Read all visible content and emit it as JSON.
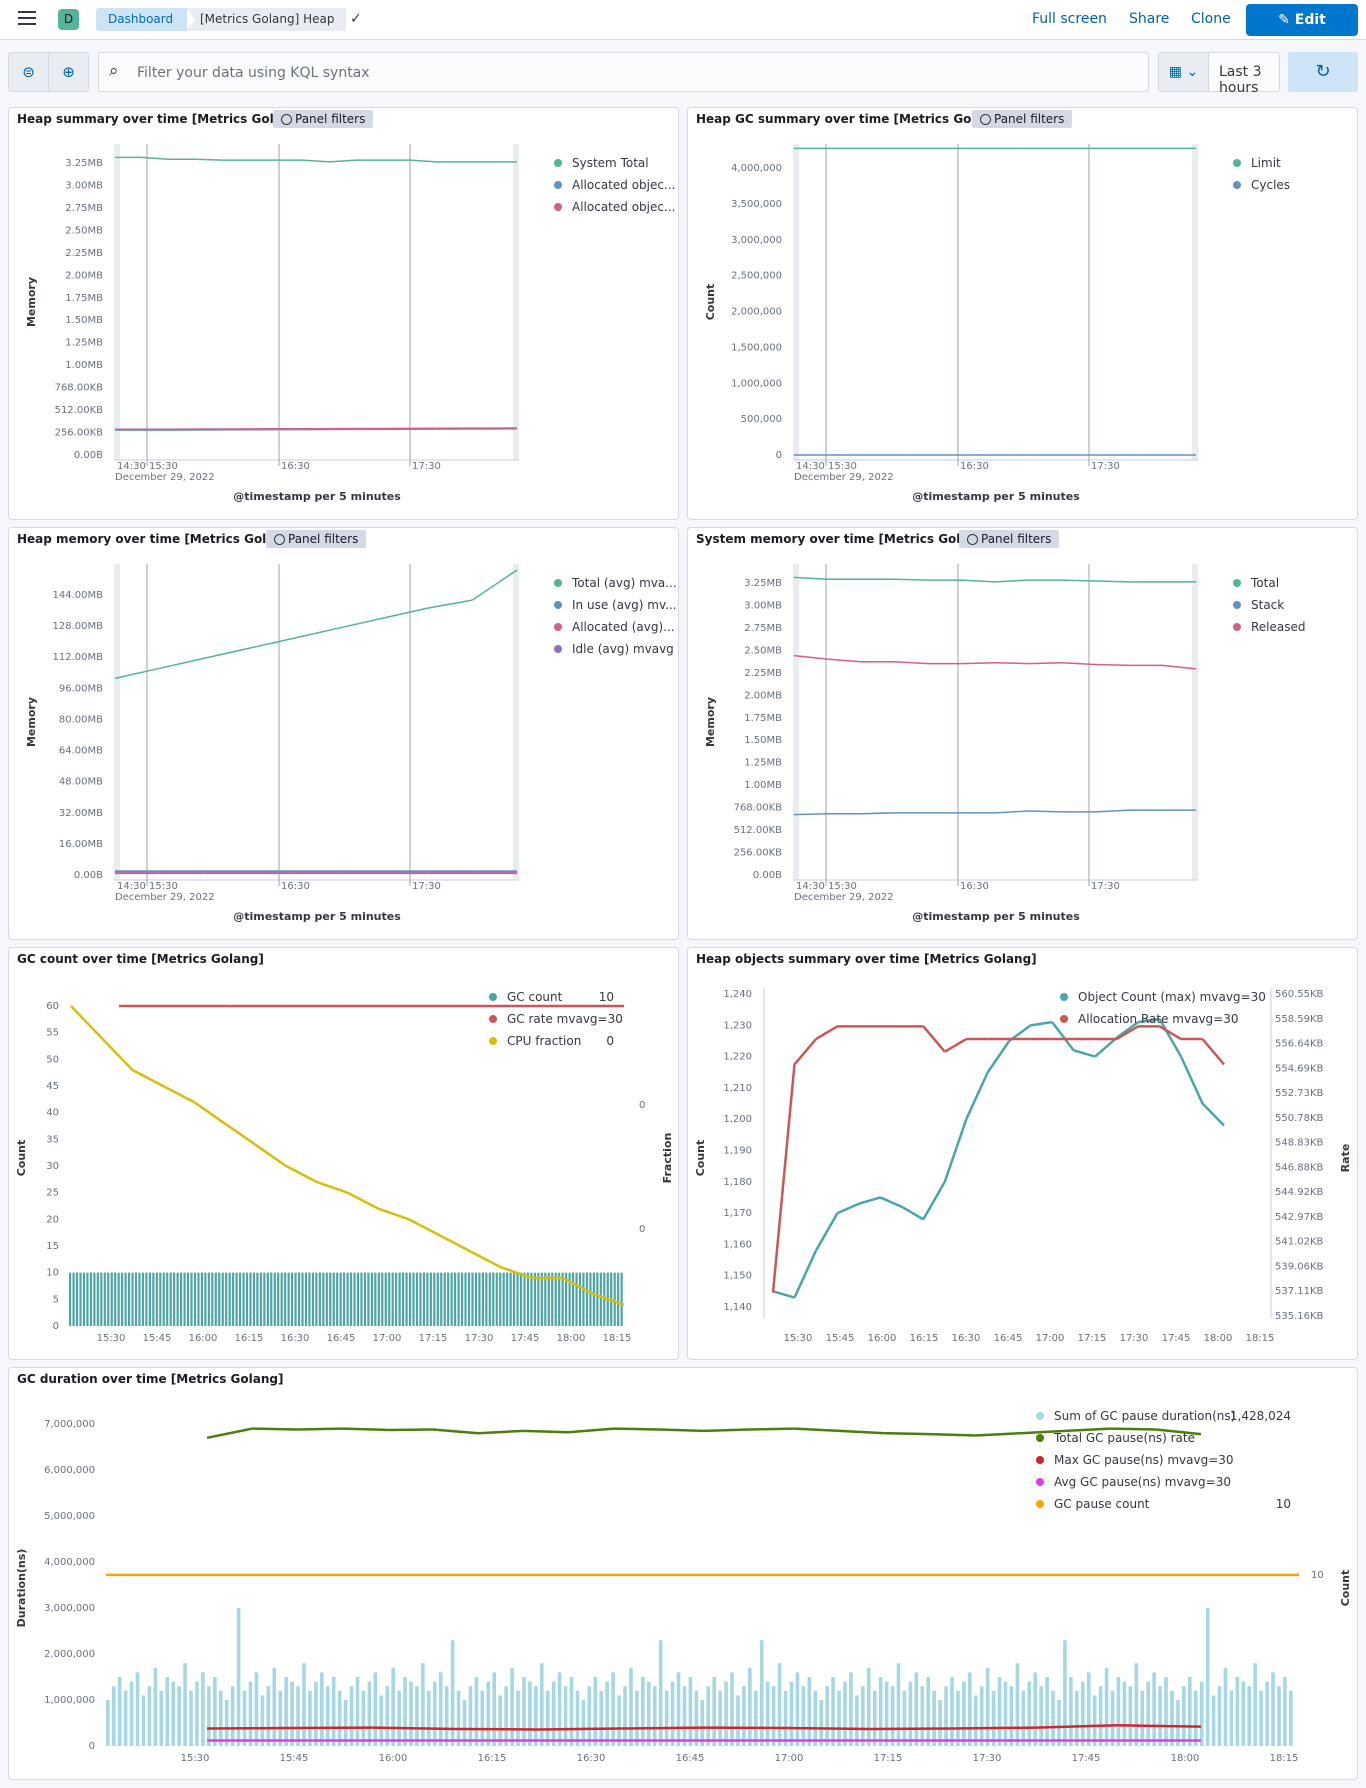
{
  "app": {
    "icon_letter": "D"
  },
  "breadcrumbs": [
    "Dashboard",
    "[Metrics Golang] Heap"
  ],
  "topnav": {
    "fullscreen": "Full screen",
    "share": "Share",
    "clone": "Clone",
    "edit": "Edit"
  },
  "filter": {
    "placeholder": "Filter your data using KQL syntax",
    "time_range": "Last 3 hours"
  },
  "panel_filters_label": "Panel filters",
  "colors": {
    "green": "#54b399",
    "blue": "#6092c0",
    "pink": "#d36086",
    "purple": "#9170b8",
    "teal": "#4ba5a5",
    "red": "#ca5757",
    "yellow": "#d6bf0b",
    "dkgreen": "#4a7f0b",
    "lightblue": "#a6d7e4",
    "crimson": "#d0262b",
    "magenta": "#e23ae8",
    "orange": "#f5a700"
  },
  "panels": [
    {
      "title": "Heap summary over time [Metrics Golang]",
      "filters": true
    },
    {
      "title": "Heap GC summary over time [Metrics Golang]",
      "filters": true
    },
    {
      "title": "Heap memory over time [Metrics Golang]",
      "filters": true
    },
    {
      "title": "System memory over time [Metrics Golang]",
      "filters": true
    },
    {
      "title": "GC count over time [Metrics Golang]",
      "filters": false
    },
    {
      "title": "Heap objects summary over time [Metrics Golang]",
      "filters": false
    },
    {
      "title": "GC duration over time [Metrics Golang]",
      "filters": false
    }
  ],
  "chart_data": [
    {
      "type": "line",
      "ylabel": "Memory",
      "xlabel": "@timestamp per 5 minutes",
      "xticks": [
        "14:30",
        "15:30",
        "16:30",
        "17:30"
      ],
      "xdate": "December 29, 2022",
      "yticks": [
        "0.00B",
        "256.00KB",
        "512.00KB",
        "768.00KB",
        "1.00MB",
        "1.25MB",
        "1.50MB",
        "1.75MB",
        "2.00MB",
        "2.25MB",
        "2.50MB",
        "2.75MB",
        "3.00MB",
        "3.25MB"
      ],
      "ymax_kb": 3456,
      "series": [
        {
          "name": "System Total",
          "color": "#54b399",
          "values_kb": [
            3350,
            3350,
            3330,
            3330,
            3320,
            3320,
            3320,
            3320,
            3300,
            3320,
            3320,
            3320,
            3300,
            3300,
            3300,
            3300
          ]
        },
        {
          "name": "Allocated objec...",
          "color": "#6092c0",
          "values_kb": [
            280,
            280,
            280,
            282,
            283,
            284,
            285,
            286,
            287,
            288,
            289,
            290,
            291,
            292,
            293,
            294
          ]
        },
        {
          "name": "Allocated objec...",
          "color": "#d36086",
          "values_kb": [
            290,
            290,
            290,
            292,
            293,
            294,
            295,
            296,
            297,
            298,
            299,
            300,
            301,
            302,
            303,
            304
          ]
        }
      ]
    },
    {
      "type": "line",
      "ylabel": "Count",
      "xlabel": "@timestamp per 5 minutes",
      "xticks": [
        "14:30",
        "15:30",
        "16:30",
        "17:30"
      ],
      "xdate": "December 29, 2022",
      "yticks": [
        "0",
        "500,000",
        "1,000,000",
        "1,500,000",
        "2,000,000",
        "2,500,000",
        "3,000,000",
        "3,500,000",
        "4,000,000"
      ],
      "ymax": 4200000,
      "series": [
        {
          "name": "Limit",
          "color": "#54b399",
          "values": [
            4194304,
            4194304,
            4194304,
            4194304,
            4194304,
            4194304,
            4194304,
            4194304
          ]
        },
        {
          "name": "Cycles",
          "color": "#6092c0",
          "values": [
            10,
            10,
            10,
            10,
            10,
            10,
            10,
            10
          ]
        }
      ]
    },
    {
      "type": "line",
      "ylabel": "Memory",
      "xlabel": "@timestamp per 5 minutes",
      "xticks": [
        "14:30",
        "15:30",
        "16:30",
        "17:30"
      ],
      "xdate": "December 29, 2022",
      "yticks": [
        "0.00B",
        "16.00MB",
        "32.00MB",
        "48.00MB",
        "64.00MB",
        "80.00MB",
        "96.00MB",
        "112.00MB",
        "128.00MB",
        "144.00MB"
      ],
      "ymax_mb": 153,
      "series": [
        {
          "name": "Total (avg) mva...",
          "color": "#54b399",
          "values_mb": [
            98,
            103,
            108,
            113,
            118,
            123,
            128,
            133,
            137,
            152
          ]
        },
        {
          "name": "In use (avg) mv...",
          "color": "#6092c0",
          "values_mb": [
            2,
            2,
            2,
            2,
            2,
            2,
            2,
            2,
            2,
            2
          ]
        },
        {
          "name": "Allocated (avg)...",
          "color": "#d36086",
          "values_mb": [
            1.5,
            1.5,
            1.5,
            1.5,
            1.5,
            1.5,
            1.5,
            1.5,
            1.5,
            1.5
          ]
        },
        {
          "name": "Idle (avg) mvavg",
          "color": "#9170b8",
          "values_mb": [
            0.8,
            0.8,
            0.8,
            0.8,
            0.8,
            0.8,
            0.8,
            0.8,
            0.8,
            0.8
          ]
        }
      ]
    },
    {
      "type": "line",
      "ylabel": "Memory",
      "xlabel": "@timestamp per 5 minutes",
      "xticks": [
        "14:30",
        "15:30",
        "16:30",
        "17:30"
      ],
      "xdate": "December 29, 2022",
      "yticks": [
        "0.00B",
        "256.00KB",
        "512.00KB",
        "768.00KB",
        "1.00MB",
        "1.25MB",
        "1.50MB",
        "1.75MB",
        "2.00MB",
        "2.25MB",
        "2.50MB",
        "2.75MB",
        "3.00MB",
        "3.25MB"
      ],
      "ymax_kb": 3456,
      "series": [
        {
          "name": "Total",
          "color": "#54b399",
          "values_kb": [
            3350,
            3330,
            3330,
            3330,
            3320,
            3320,
            3300,
            3320,
            3320,
            3310,
            3300,
            3300,
            3300
          ]
        },
        {
          "name": "Stack",
          "color": "#6092c0",
          "values_kb": [
            680,
            690,
            690,
            700,
            700,
            700,
            700,
            720,
            710,
            710,
            730,
            730,
            730
          ]
        },
        {
          "name": "Released",
          "color": "#d36086",
          "values_kb": [
            2470,
            2430,
            2400,
            2400,
            2380,
            2380,
            2390,
            2380,
            2390,
            2370,
            2360,
            2360,
            2320
          ]
        }
      ]
    },
    {
      "type": "bar",
      "ylabel": "Count",
      "y2label": "Fraction",
      "xticks": [
        "15:30",
        "15:45",
        "16:00",
        "16:15",
        "16:30",
        "16:45",
        "17:00",
        "17:15",
        "17:30",
        "17:45",
        "18:00",
        "18:15"
      ],
      "yticks": [
        "0",
        "5",
        "10",
        "15",
        "20",
        "25",
        "30",
        "35",
        "40",
        "45",
        "50",
        "55",
        "60"
      ],
      "y2ticks": [
        "0",
        "0"
      ],
      "series": [
        {
          "name": "GC count",
          "color": "#4ba5a5",
          "value": "10",
          "values": [
            10
          ]
        },
        {
          "name": "GC rate mvavg=30",
          "color": "#ca5757",
          "value": "",
          "values": [
            60
          ]
        },
        {
          "name": "CPU fraction",
          "color": "#d6bf0b",
          "value": "0",
          "values": [
            60,
            54,
            48,
            45,
            42,
            38,
            34,
            30,
            27,
            25,
            22,
            20,
            17,
            14,
            11,
            9,
            9,
            6,
            4
          ]
        }
      ]
    },
    {
      "type": "line",
      "ylabel": "Count",
      "y2label": "Rate",
      "xticks": [
        "15:30",
        "15:45",
        "16:00",
        "16:15",
        "16:30",
        "16:45",
        "17:00",
        "17:15",
        "17:30",
        "17:45",
        "18:00",
        "18:15"
      ],
      "yticks": [
        "1,140",
        "1,150",
        "1,160",
        "1,170",
        "1,180",
        "1,190",
        "1,200",
        "1,210",
        "1,220",
        "1,230",
        "1,240"
      ],
      "y2ticks": [
        "535.16KB",
        "537.11KB",
        "539.06KB",
        "541.02KB",
        "542.97KB",
        "544.92KB",
        "546.88KB",
        "548.83KB",
        "550.78KB",
        "552.73KB",
        "554.69KB",
        "556.64KB",
        "558.59KB",
        "560.55KB"
      ],
      "series": [
        {
          "name": "Object Count (max) mvavg=30",
          "color": "#4ba5a5",
          "values": [
            1145,
            1143,
            1158,
            1170,
            1173,
            1175,
            1172,
            1168,
            1180,
            1200,
            1215,
            1225,
            1230,
            1231,
            1222,
            1220,
            1226,
            1231,
            1232,
            1220,
            1205,
            1198
          ]
        },
        {
          "name": "Allocation Rate mvavg=30",
          "color": "#ca5757",
          "values": [
            537,
            555,
            557,
            558,
            558,
            558,
            558,
            558,
            556,
            557,
            557,
            557,
            557,
            557,
            557,
            557,
            557,
            558,
            558,
            557,
            557,
            555
          ]
        }
      ]
    },
    {
      "type": "bar",
      "ylabel": "Duration(ns)",
      "y2label": "Count",
      "xticks": [
        "15:30",
        "15:45",
        "16:00",
        "16:15",
        "16:30",
        "16:45",
        "17:00",
        "17:15",
        "17:30",
        "17:45",
        "18:00",
        "18:15"
      ],
      "yticks": [
        "0",
        "1,000,000",
        "2,000,000",
        "3,000,000",
        "4,000,000",
        "5,000,000",
        "6,000,000",
        "7,000,000"
      ],
      "y2ticks": [
        "10"
      ],
      "series": [
        {
          "name": "Sum of GC pause duration(ns)",
          "color": "#a6d7e4",
          "value": "1,428,024"
        },
        {
          "name": "Total GC pause(ns) rate",
          "color": "#4a7f0b",
          "value": ""
        },
        {
          "name": "Max GC pause(ns) mvavg=30",
          "color": "#d0262b",
          "value": ""
        },
        {
          "name": "Avg GC pause(ns) mvavg=30",
          "color": "#e23ae8",
          "value": ""
        },
        {
          "name": "GC pause count",
          "color": "#f5a700",
          "value": "10"
        }
      ]
    }
  ]
}
